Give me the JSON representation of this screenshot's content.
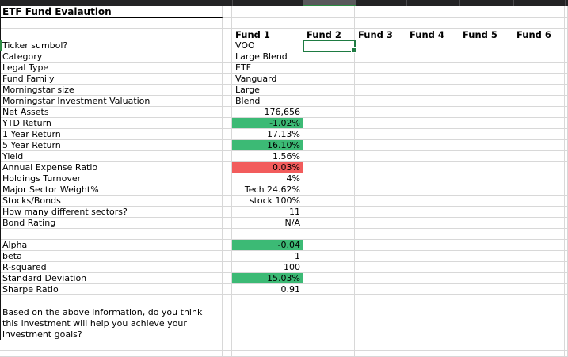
{
  "sheet": {
    "title": "ETF Fund Evalaution",
    "fund_headers": [
      "Fund 1",
      "Fund 2",
      "Fund 3",
      "Fund 4",
      "Fund 5",
      "Fund 6"
    ],
    "rows": [
      {
        "label": "Ticker sumbol?",
        "fund1": "VOO",
        "align": "left",
        "fill": ""
      },
      {
        "label": "Category",
        "fund1": "Large Blend",
        "align": "left",
        "fill": ""
      },
      {
        "label": "Legal Type",
        "fund1": "ETF",
        "align": "left",
        "fill": ""
      },
      {
        "label": "Fund Family",
        "fund1": "Vanguard",
        "align": "left",
        "fill": ""
      },
      {
        "label": "Morningstar size",
        "fund1": "Large",
        "align": "left",
        "fill": ""
      },
      {
        "label": "Morningstar Investment Valuation",
        "fund1": "Blend",
        "align": "left",
        "fill": ""
      },
      {
        "label": "Net Assets",
        "fund1": "176,656",
        "align": "right",
        "fill": ""
      },
      {
        "label": "YTD Return",
        "fund1": "-1.02%",
        "align": "right",
        "fill": "green"
      },
      {
        "label": "1 Year Return",
        "fund1": "17.13%",
        "align": "right",
        "fill": ""
      },
      {
        "label": "5 Year Return",
        "fund1": "16.10%",
        "align": "right",
        "fill": "green"
      },
      {
        "label": "Yield",
        "fund1": "1.56%",
        "align": "right",
        "fill": ""
      },
      {
        "label": "Annual Expense Ratio",
        "fund1": "0.03%",
        "align": "right",
        "fill": "red"
      },
      {
        "label": "Holdings Turnover",
        "fund1": "4%",
        "align": "right",
        "fill": ""
      },
      {
        "label": "Major Sector Weight%",
        "fund1": "Tech 24.62%",
        "align": "right",
        "fill": ""
      },
      {
        "label": "Stocks/Bonds",
        "fund1": "stock 100%",
        "align": "right",
        "fill": ""
      },
      {
        "label": "How many different sectors?",
        "fund1": "11",
        "align": "right",
        "fill": ""
      },
      {
        "label": "Bond Rating",
        "fund1": "N/A",
        "align": "right",
        "fill": ""
      },
      {
        "label": "",
        "fund1": "",
        "align": "left",
        "fill": ""
      },
      {
        "label": "Alpha",
        "fund1": "-0.04",
        "align": "right",
        "fill": "green"
      },
      {
        "label": "beta",
        "fund1": "1",
        "align": "right",
        "fill": ""
      },
      {
        "label": "R-squared",
        "fund1": "100",
        "align": "right",
        "fill": ""
      },
      {
        "label": "Standard Deviation",
        "fund1": "15.03%",
        "align": "right",
        "fill": "green"
      },
      {
        "label": "Sharpe Ratio",
        "fund1": "0.91",
        "align": "right",
        "fill": ""
      },
      {
        "label": "",
        "fund1": "",
        "align": "left",
        "fill": ""
      }
    ],
    "question_lines": [
      "Based on the above information, do you think",
      "this investment will help you achieve your",
      "investment goals?"
    ],
    "selection": {
      "column": "Fund 2",
      "row": "Ticker sumbol?"
    },
    "colors": {
      "positive_fill": "#3cba75",
      "negative_fill": "#f25c5c",
      "selection_border": "#1e7b42",
      "gridline": "#d8d8d8",
      "strip_bg": "#232325",
      "strip_highlight": "#59595c",
      "strip_underline": "#2c8c42"
    }
  }
}
